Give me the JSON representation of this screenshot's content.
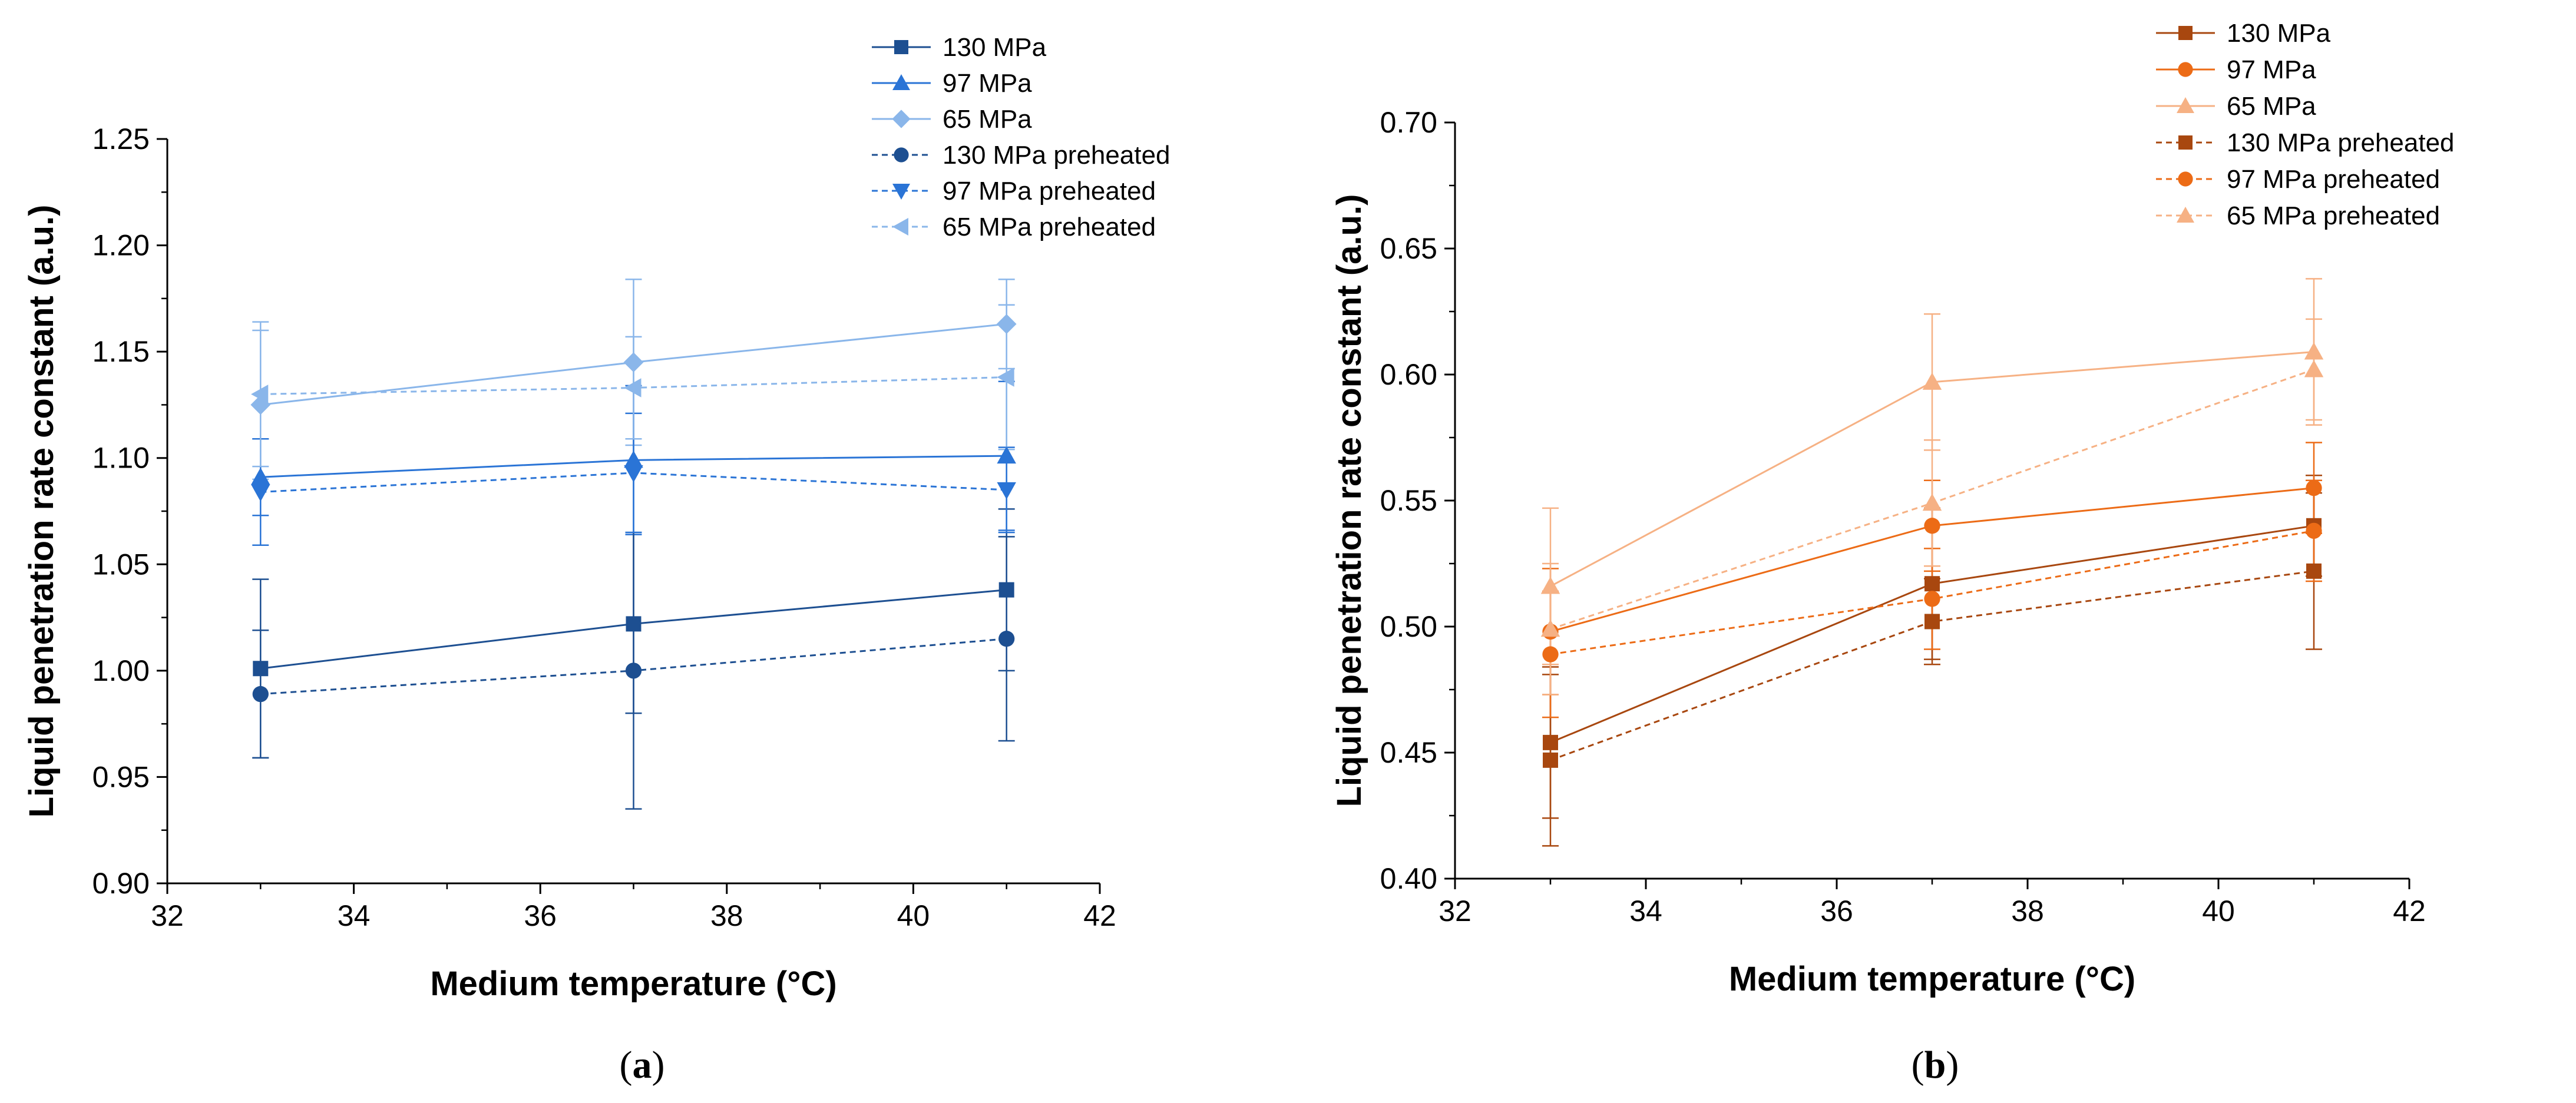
{
  "chart_data": [
    {
      "id": "a",
      "type": "line",
      "panel_label": "(a)",
      "panel_letter": "a",
      "xlabel": "Medium temperature (°C)",
      "ylabel": "Liquid penetration rate constant (a.u.)",
      "xlim": [
        32,
        42
      ],
      "ylim": [
        0.9,
        1.25
      ],
      "xticks": [
        "32",
        "34",
        "36",
        "38",
        "40",
        "42"
      ],
      "yticks": [
        "0.90",
        "0.95",
        "1.00",
        "1.05",
        "1.10",
        "1.15",
        "1.20",
        "1.25"
      ],
      "x": [
        33,
        37,
        41
      ],
      "legend_position": "top-right",
      "series": [
        {
          "name": "130 MPa",
          "color": "#1d4f91",
          "marker": "square",
          "dash": false,
          "values": [
            1.001,
            1.022,
            1.038
          ],
          "errors": [
            0.042,
            0.042,
            0.038
          ]
        },
        {
          "name": "97 MPa",
          "color": "#2a74d6",
          "marker": "triangle-up",
          "dash": false,
          "values": [
            1.091,
            1.099,
            1.101
          ],
          "errors": [
            0.018,
            0.035,
            0.035
          ]
        },
        {
          "name": "65 MPa",
          "color": "#8ab6ea",
          "marker": "diamond",
          "dash": false,
          "values": [
            1.125,
            1.145,
            1.163
          ],
          "errors": [
            0.035,
            0.039,
            0.021
          ]
        },
        {
          "name": "130 MPa preheated",
          "color": "#1d4f91",
          "marker": "circle",
          "dash": true,
          "values": [
            0.989,
            1.0,
            1.015
          ],
          "errors": [
            0.03,
            0.065,
            0.048
          ]
        },
        {
          "name": "97 MPa preheated",
          "color": "#2a74d6",
          "marker": "triangle-down",
          "dash": true,
          "values": [
            1.084,
            1.093,
            1.085
          ],
          "errors": [
            0.025,
            0.028,
            0.02
          ]
        },
        {
          "name": "65 MPa preheated",
          "color": "#8ab6ea",
          "marker": "triangle-left",
          "dash": true,
          "values": [
            1.13,
            1.133,
            1.138
          ],
          "errors": [
            0.034,
            0.024,
            0.034
          ]
        }
      ]
    },
    {
      "id": "b",
      "type": "line",
      "panel_label": "(b)",
      "panel_letter": "b",
      "xlabel": "Medium temperature (°C)",
      "ylabel": "Liquid penetration rate constant (a.u.)",
      "xlim": [
        32,
        42
      ],
      "ylim": [
        0.4,
        0.7
      ],
      "xticks": [
        "32",
        "34",
        "36",
        "38",
        "40",
        "42"
      ],
      "yticks": [
        "0.40",
        "0.45",
        "0.50",
        "0.55",
        "0.60",
        "0.65",
        "0.70"
      ],
      "x": [
        33,
        37,
        41
      ],
      "legend_position": "top-right",
      "series": [
        {
          "name": "130 MPa",
          "color": "#a8470f",
          "marker": "square",
          "dash": false,
          "values": [
            0.454,
            0.517,
            0.54
          ],
          "errors": [
            0.03,
            0.03,
            0.02
          ]
        },
        {
          "name": "97 MPa",
          "color": "#ec6b16",
          "marker": "circle",
          "dash": false,
          "values": [
            0.498,
            0.54,
            0.555
          ],
          "errors": [
            0.025,
            0.018,
            0.018
          ]
        },
        {
          "name": "65 MPa",
          "color": "#f6b184",
          "marker": "triangle-up",
          "dash": false,
          "values": [
            0.516,
            0.597,
            0.609
          ],
          "errors": [
            0.031,
            0.027,
            0.029
          ]
        },
        {
          "name": "130 MPa preheated",
          "color": "#a8470f",
          "marker": "square",
          "dash": true,
          "values": [
            0.447,
            0.502,
            0.522
          ],
          "errors": [
            0.034,
            0.017,
            0.031
          ]
        },
        {
          "name": "97 MPa preheated",
          "color": "#ec6b16",
          "marker": "circle",
          "dash": true,
          "values": [
            0.489,
            0.511,
            0.538
          ],
          "errors": [
            0.025,
            0.02,
            0.02
          ]
        },
        {
          "name": "65 MPa preheated",
          "color": "#f6b184",
          "marker": "triangle-up",
          "dash": true,
          "values": [
            0.499,
            0.549,
            0.602
          ],
          "errors": [
            0.026,
            0.025,
            0.02
          ]
        }
      ]
    }
  ]
}
